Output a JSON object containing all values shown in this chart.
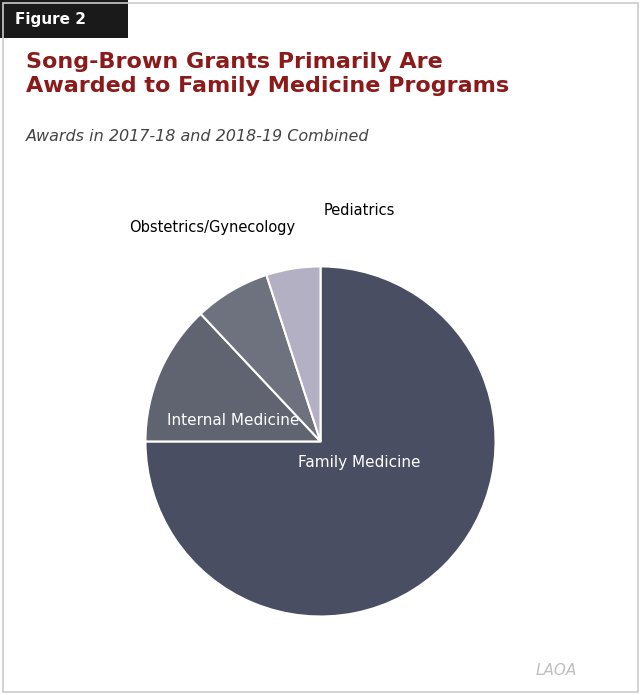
{
  "figure_label": "Figure 2",
  "title": "Song-Brown Grants Primarily Are\nAwarded to Family Medicine Programs",
  "subtitle": "Awards in 2017-18 and 2018-19 Combined",
  "slices": [
    {
      "label": "Family Medicine",
      "value": 75,
      "color": "#4a4e63",
      "text_color": "white",
      "label_inside": true
    },
    {
      "label": "Internal Medicine",
      "value": 13,
      "color": "#606370",
      "text_color": "white",
      "label_inside": true
    },
    {
      "label": "Obstetrics/Gynecology",
      "value": 7,
      "color": "#6e717e",
      "text_color": "black",
      "label_inside": false
    },
    {
      "label": "Pediatrics",
      "value": 5,
      "color": "#b2b0c2",
      "text_color": "black",
      "label_inside": false
    }
  ],
  "title_color": "#8b1a1a",
  "subtitle_color": "#444444",
  "figure_label_bg": "#1a1a1a",
  "figure_label_color": "white",
  "watermark": "LAOA",
  "bg_color": "#ffffff",
  "title_fontsize": 16,
  "subtitle_fontsize": 11.5,
  "startangle": 90,
  "border_color": "#cccccc"
}
